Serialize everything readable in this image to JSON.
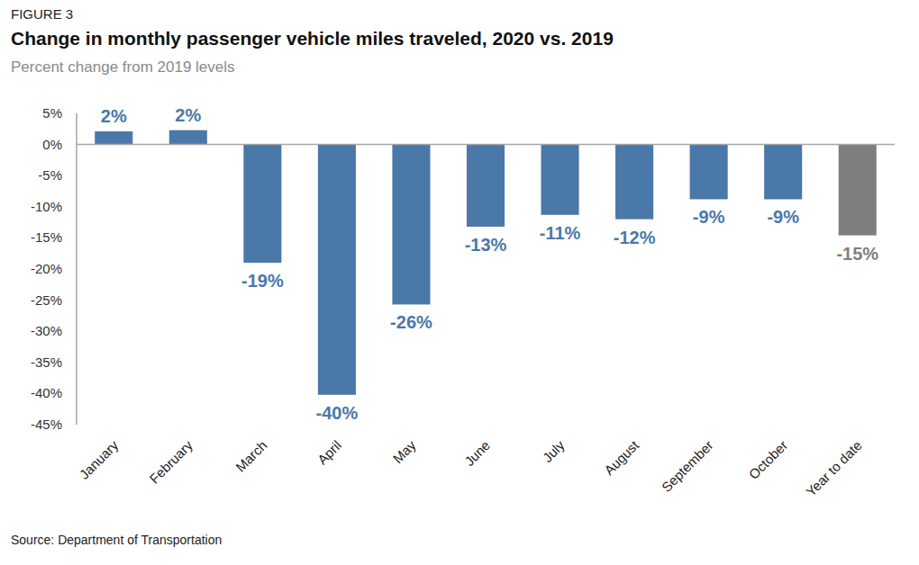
{
  "chart_data": {
    "type": "bar",
    "figure_label": "FIGURE 3",
    "title": "Change in monthly passenger vehicle miles traveled, 2020 vs. 2019",
    "subtitle": "Percent change from 2019 levels",
    "source": "Source: Department of Transportation",
    "categories": [
      "January",
      "February",
      "March",
      "April",
      "May",
      "June",
      "July",
      "August",
      "September",
      "October",
      "Year to date"
    ],
    "values": [
      2.1,
      2.3,
      -19,
      -40.2,
      -25.7,
      -13.2,
      -11.3,
      -12,
      -8.8,
      -8.8,
      -14.6
    ],
    "value_labels": [
      "2%",
      "2%",
      "-19%",
      "-40%",
      "-26%",
      "-13%",
      "-11%",
      "-12%",
      "-9%",
      "-9%",
      "-15%"
    ],
    "colors": [
      "#4a78a9",
      "#4a78a9",
      "#4a78a9",
      "#4a78a9",
      "#4a78a9",
      "#4a78a9",
      "#4a78a9",
      "#4a78a9",
      "#4a78a9",
      "#4a78a9",
      "#7f7f7f"
    ],
    "ylim": [
      -45,
      5
    ],
    "yticks": [
      {
        "value": -45,
        "label": "-45%"
      },
      {
        "value": -40,
        "label": "-40%"
      },
      {
        "value": -35,
        "label": "-35%"
      },
      {
        "value": -30,
        "label": "-30%"
      },
      {
        "value": -25,
        "label": "-25%"
      },
      {
        "value": -20,
        "label": "-20%"
      },
      {
        "value": -15,
        "label": "-15%"
      },
      {
        "value": -10,
        "label": "-10%"
      },
      {
        "value": -5,
        "label": "-5%"
      },
      {
        "value": 0,
        "label": "0%"
      },
      {
        "value": 5,
        "label": "5%"
      }
    ],
    "grid": false,
    "data_labels": true
  }
}
